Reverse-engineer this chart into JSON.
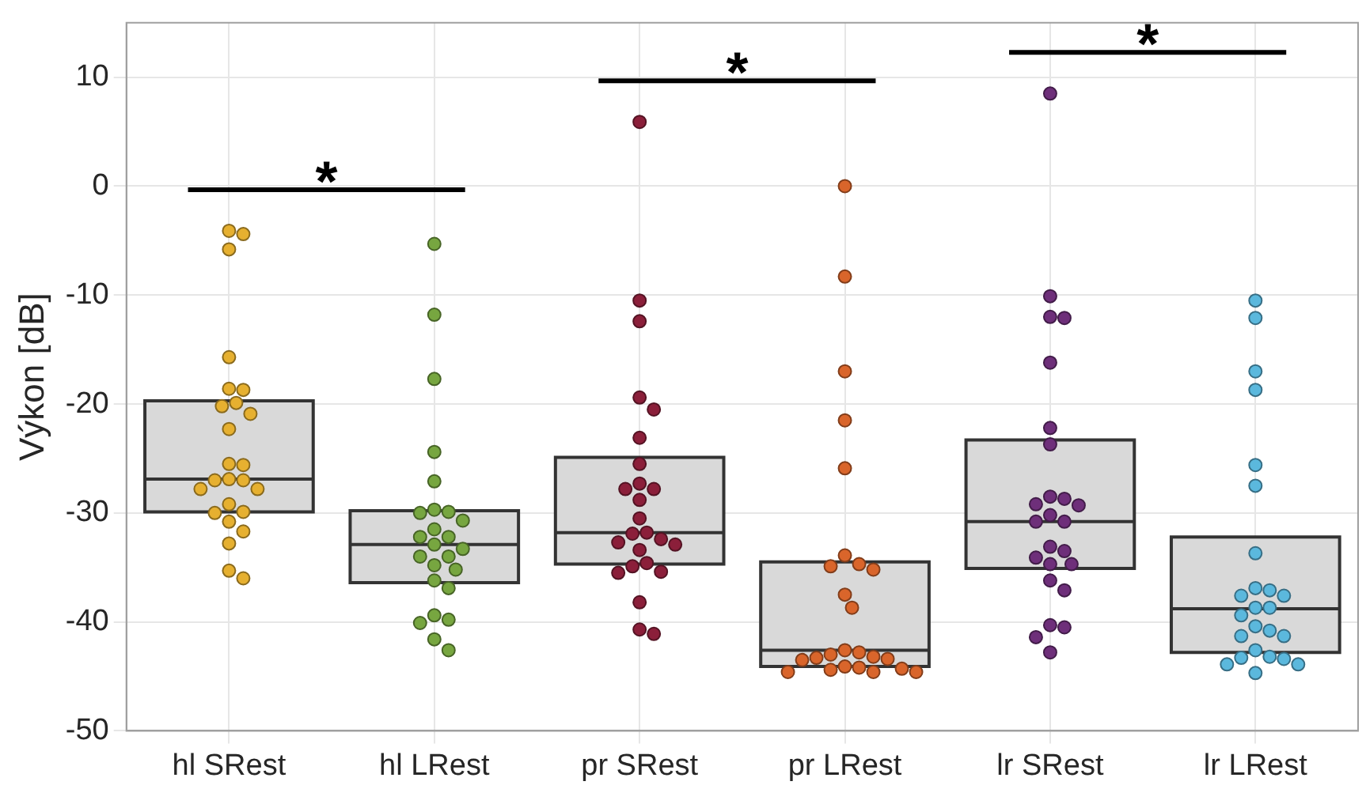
{
  "chart_data": {
    "type": "box",
    "ylabel": "Výkon [dB]",
    "categories": [
      "hl SRest",
      "hl LRest",
      "pr SRest",
      "pr LRest",
      "lr SRest",
      "lr LRest"
    ],
    "boxes": [
      {
        "low": -29.9,
        "q1": -29.9,
        "median": -26.9,
        "q3": -19.7,
        "high": -19.7
      },
      {
        "low": -36.4,
        "q1": -36.4,
        "median": -32.9,
        "q3": -29.8,
        "high": -29.8
      },
      {
        "low": -34.7,
        "q1": -34.7,
        "median": -31.8,
        "q3": -24.9,
        "high": -24.9
      },
      {
        "low": -44.1,
        "q1": -44.1,
        "median": -42.6,
        "q3": -34.5,
        "high": -34.5
      },
      {
        "low": -35.1,
        "q1": -35.1,
        "median": -30.8,
        "q3": -23.3,
        "high": -23.3
      },
      {
        "low": -42.8,
        "q1": -42.8,
        "median": -38.8,
        "q3": -32.2,
        "high": -32.2
      }
    ],
    "series": [
      {
        "type": "scatter",
        "color": "#e6b030",
        "x": [
          "hl SRest",
          "hl SRest",
          "hl SRest",
          "hl SRest",
          "hl SRest",
          "hl SRest",
          "hl SRest",
          "hl SRest",
          "hl SRest",
          "hl SRest",
          "hl SRest",
          "hl SRest",
          "hl SRest",
          "hl SRest",
          "hl SRest",
          "hl SRest",
          "hl SRest",
          "hl SRest",
          "hl SRest",
          "hl SRest",
          "hl SRest",
          "hl SRest",
          "hl SRest",
          "hl SRest",
          "hl SRest"
        ],
        "values": [
          -5.8,
          -4.1,
          -4.4,
          -15.7,
          -18.7,
          -18.6,
          -19.9,
          -20.2,
          -20.9,
          -22.3,
          -25.5,
          -25.6,
          -27.0,
          -26.9,
          -27.8,
          -27.0,
          -27.8,
          -29.2,
          -29.9,
          -30.0,
          -30.8,
          -31.7,
          -32.8,
          -35.3,
          -36.0
        ]
      },
      {
        "type": "scatter",
        "color": "#77a640",
        "x": [
          "hl LRest",
          "hl LRest",
          "hl LRest",
          "hl LRest",
          "hl LRest",
          "hl LRest",
          "hl LRest",
          "hl LRest",
          "hl LRest",
          "hl LRest",
          "hl LRest",
          "hl LRest",
          "hl LRest",
          "hl LRest",
          "hl LRest",
          "hl LRest",
          "hl LRest",
          "hl LRest",
          "hl LRest",
          "hl LRest",
          "hl LRest",
          "hl LRest",
          "hl LRest",
          "hl LRest",
          "hl LRest"
        ],
        "values": [
          -5.3,
          -11.8,
          -17.7,
          -24.4,
          -27.1,
          -29.7,
          -30.0,
          -29.9,
          -30.7,
          -31.5,
          -32.2,
          -32.9,
          -33.3,
          -32.2,
          -34.0,
          -34.0,
          -34.8,
          -35.2,
          -36.2,
          -36.9,
          -39.8,
          -39.4,
          -40.1,
          -41.6,
          -42.6
        ]
      },
      {
        "type": "scatter",
        "color": "#8b1f3a",
        "x": [
          "pr SRest",
          "pr SRest",
          "pr SRest",
          "pr SRest",
          "pr SRest",
          "pr SRest",
          "pr SRest",
          "pr SRest",
          "pr SRest",
          "pr SRest",
          "pr SRest",
          "pr SRest",
          "pr SRest",
          "pr SRest",
          "pr SRest",
          "pr SRest",
          "pr SRest",
          "pr SRest",
          "pr SRest",
          "pr SRest",
          "pr SRest",
          "pr SRest",
          "pr SRest",
          "pr SRest",
          "pr SRest"
        ],
        "values": [
          5.9,
          -10.5,
          -12.4,
          -19.4,
          -20.5,
          -23.1,
          -25.5,
          -27.8,
          -27.3,
          -27.8,
          -28.8,
          -30.5,
          -31.9,
          -31.8,
          -32.4,
          -32.7,
          -32.9,
          -33.4,
          -34.9,
          -34.6,
          -35.5,
          -35.4,
          -38.2,
          -40.7,
          -41.1
        ]
      },
      {
        "type": "scatter",
        "color": "#d9652b",
        "x": [
          "pr LRest",
          "pr LRest",
          "pr LRest",
          "pr LRest",
          "pr LRest",
          "pr LRest",
          "pr LRest",
          "pr LRest",
          "pr LRest",
          "pr LRest",
          "pr LRest",
          "pr LRest",
          "pr LRest",
          "pr LRest",
          "pr LRest",
          "pr LRest",
          "pr LRest",
          "pr LRest",
          "pr LRest",
          "pr LRest",
          "pr LRest",
          "pr LRest",
          "pr LRest",
          "pr LRest",
          "pr LRest"
        ],
        "values": [
          0.0,
          -8.3,
          -17.0,
          -21.5,
          -25.9,
          -33.9,
          -34.7,
          -35.2,
          -34.9,
          -37.5,
          -38.7,
          -42.6,
          -42.8,
          -43.0,
          -43.2,
          -43.4,
          -43.5,
          -43.3,
          -44.1,
          -44.3,
          -44.2,
          -44.4,
          -44.6,
          -44.6,
          -44.6
        ]
      },
      {
        "type": "scatter",
        "color": "#6e2f7a",
        "x": [
          "lr SRest",
          "lr SRest",
          "lr SRest",
          "lr SRest",
          "lr SRest",
          "lr SRest",
          "lr SRest",
          "lr SRest",
          "lr SRest",
          "lr SRest",
          "lr SRest",
          "lr SRest",
          "lr SRest",
          "lr SRest",
          "lr SRest",
          "lr SRest",
          "lr SRest",
          "lr SRest",
          "lr SRest",
          "lr SRest",
          "lr SRest",
          "lr SRest",
          "lr SRest",
          "lr SRest",
          "lr SRest"
        ],
        "values": [
          8.5,
          -10.1,
          -12.1,
          -12.0,
          -16.2,
          -22.2,
          -23.7,
          -28.5,
          -28.7,
          -29.2,
          -29.3,
          -30.2,
          -30.8,
          -30.8,
          -33.1,
          -33.5,
          -34.1,
          -34.7,
          -34.7,
          -36.2,
          -37.1,
          -40.3,
          -40.5,
          -41.4,
          -42.8
        ]
      },
      {
        "type": "scatter",
        "color": "#5bb8dd",
        "x": [
          "lr LRest",
          "lr LRest",
          "lr LRest",
          "lr LRest",
          "lr LRest",
          "lr LRest",
          "lr LRest",
          "lr LRest",
          "lr LRest",
          "lr LRest",
          "lr LRest",
          "lr LRest",
          "lr LRest",
          "lr LRest",
          "lr LRest",
          "lr LRest",
          "lr LRest",
          "lr LRest",
          "lr LRest",
          "lr LRest",
          "lr LRest",
          "lr LRest",
          "lr LRest",
          "lr LRest",
          "lr LRest"
        ],
        "values": [
          -10.5,
          -12.1,
          -17.0,
          -18.7,
          -25.6,
          -27.5,
          -33.7,
          -36.9,
          -37.6,
          -37.1,
          -37.6,
          -38.7,
          -38.7,
          -39.4,
          -40.4,
          -40.8,
          -41.3,
          -41.3,
          -42.6,
          -43.3,
          -43.2,
          -43.4,
          -43.9,
          -43.9,
          -44.7
        ]
      }
    ],
    "annotations": [
      "*",
      "*",
      "*"
    ],
    "ylim": [
      -50,
      15
    ],
    "yticks": [
      -50,
      -40,
      -30,
      -20,
      -10,
      0,
      10
    ],
    "grid": true,
    "legend": false,
    "marker": "circle"
  }
}
